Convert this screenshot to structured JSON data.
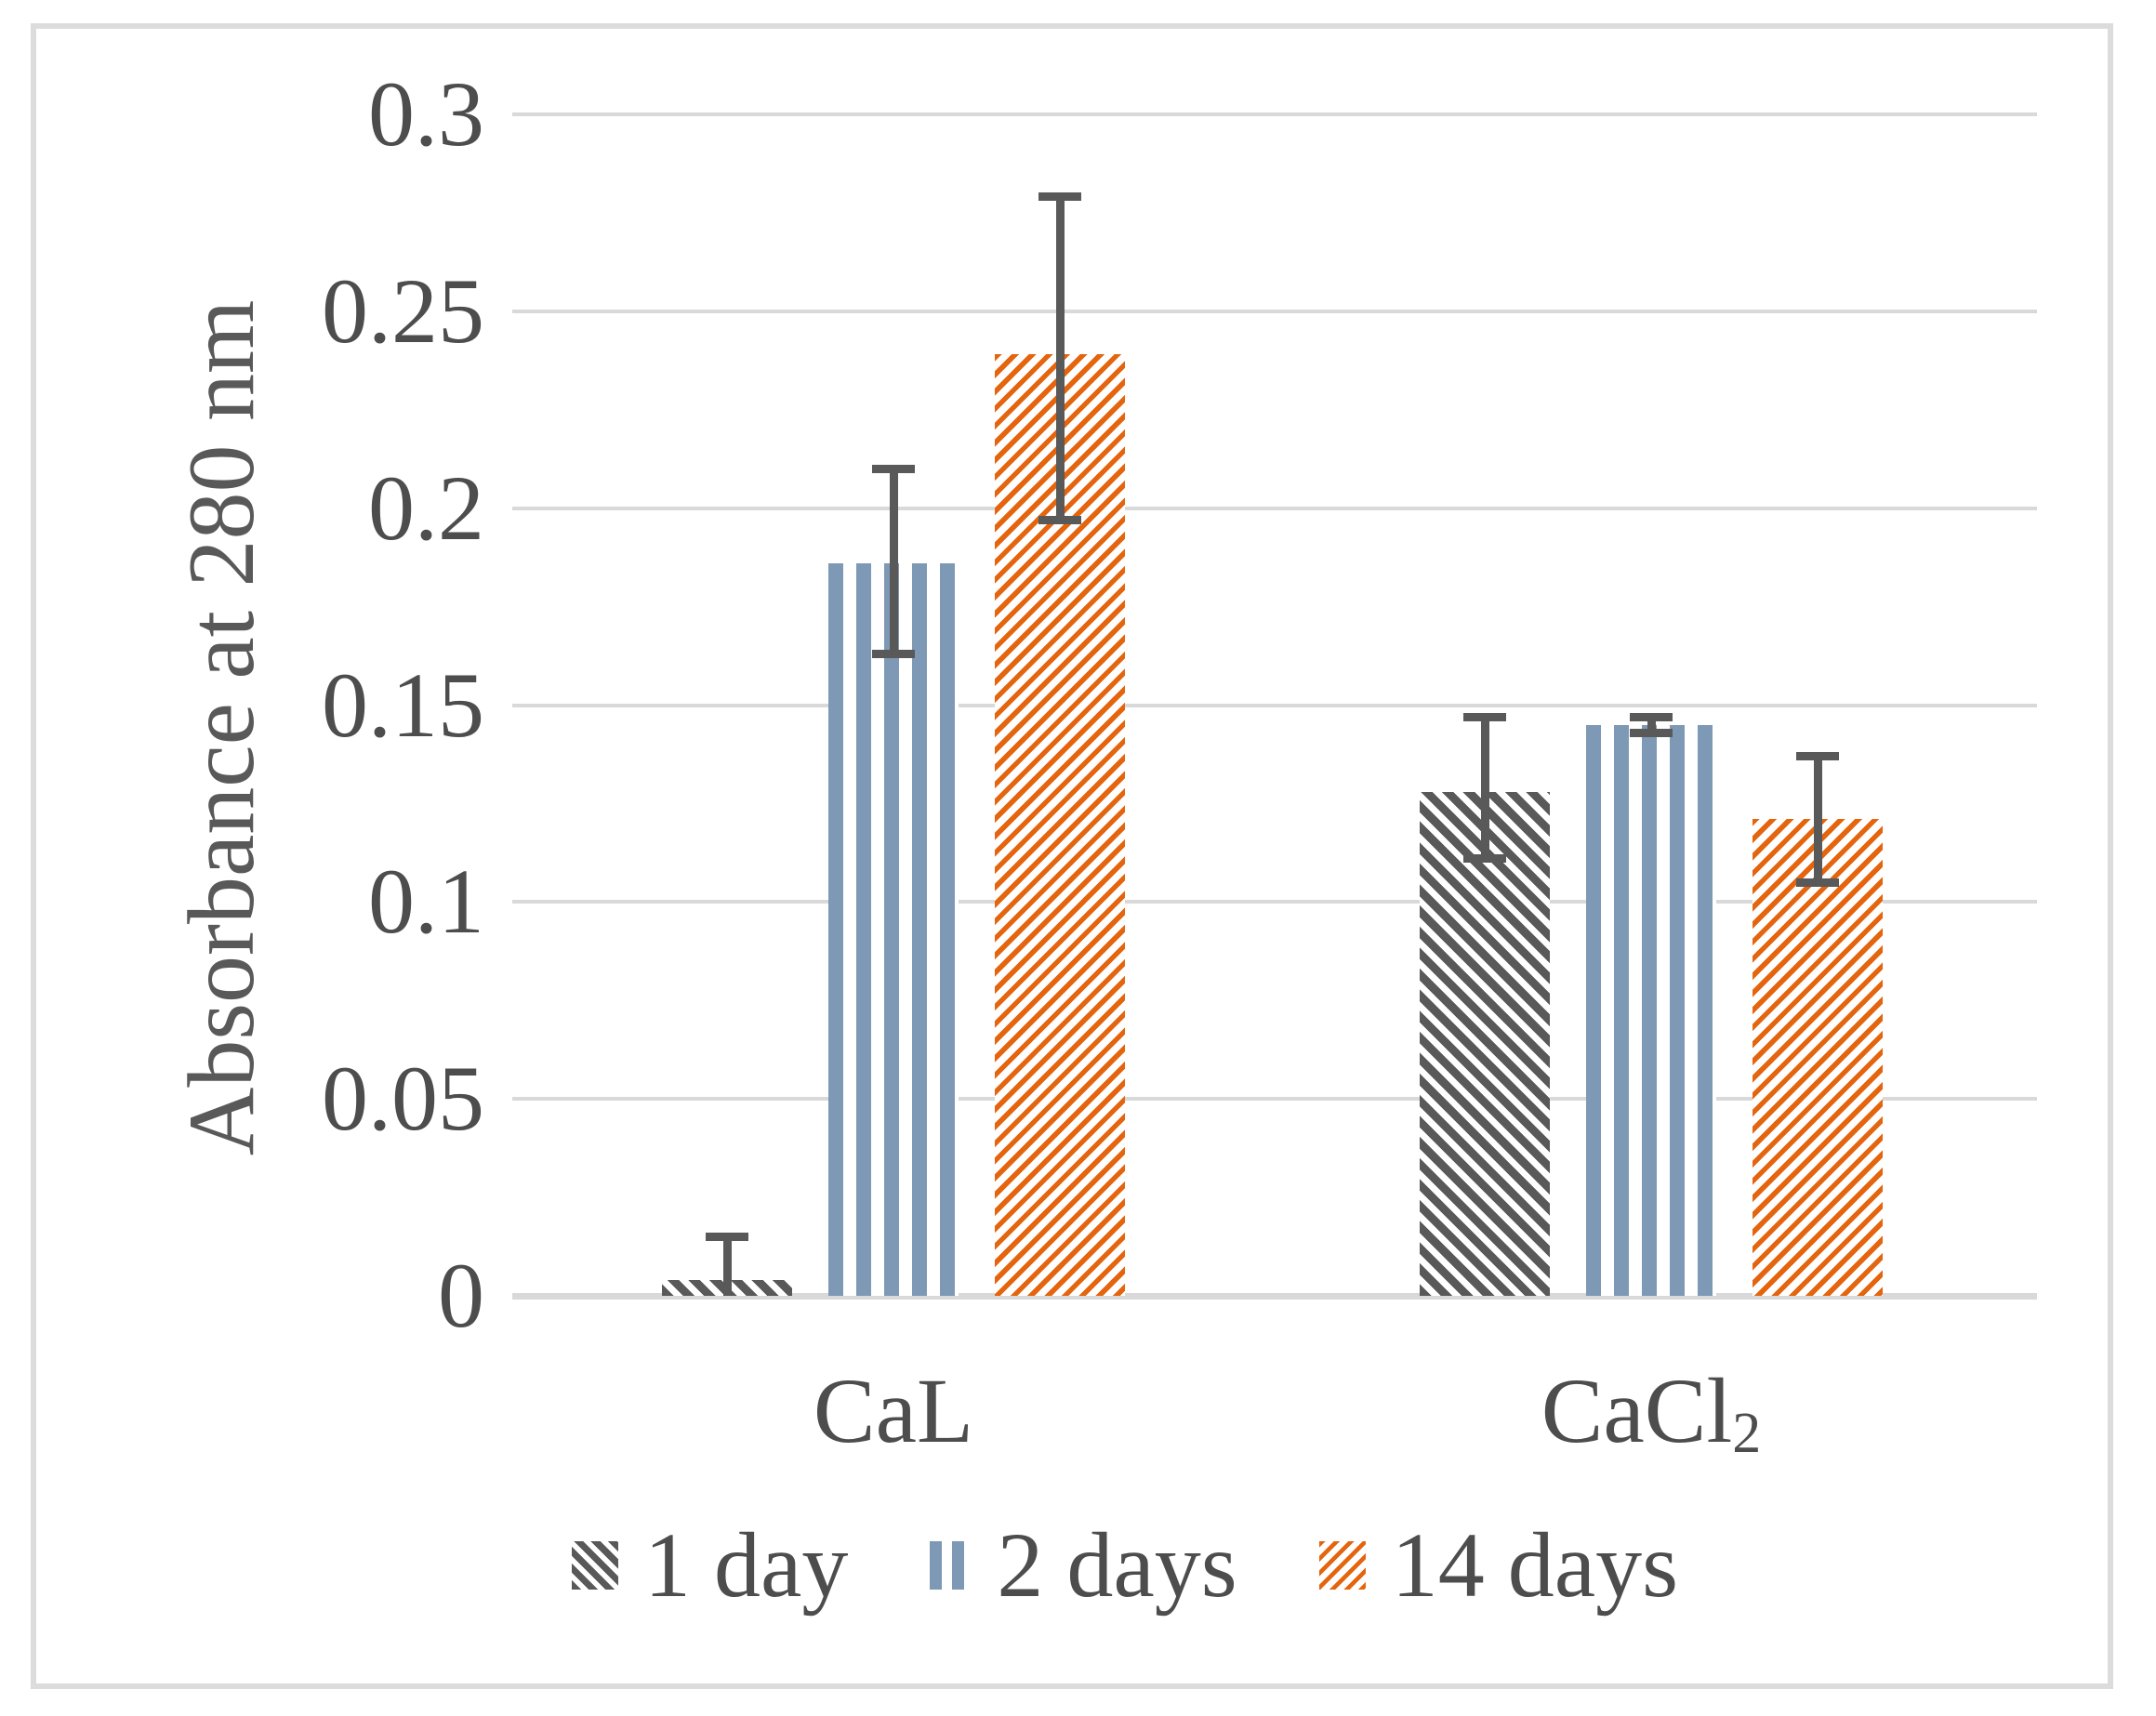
{
  "chart_data": {
    "type": "bar",
    "title": "",
    "ylabel": "Absorbance at 280 nm",
    "xlabel": "",
    "ylim": [
      0,
      0.3
    ],
    "grid": true,
    "legend_position": "bottom",
    "yticks": [
      {
        "label": "0",
        "value": 0
      },
      {
        "label": "0.05",
        "value": 0.05
      },
      {
        "label": "0.1",
        "value": 0.1
      },
      {
        "label": "0.15",
        "value": 0.15
      },
      {
        "label": "0.2",
        "value": 0.2
      },
      {
        "label": "0.25",
        "value": 0.25
      },
      {
        "label": "0.3",
        "value": 0.3
      }
    ],
    "categories": [
      {
        "text": "CaL",
        "subscript": ""
      },
      {
        "text": "CaCl",
        "subscript": "2"
      }
    ],
    "series": [
      {
        "name": "1 day",
        "pattern": "diagonal-down-hatch",
        "color": "#595959",
        "values": [
          0.004,
          0.128
        ],
        "err_lo": [
          null,
          0.111
        ],
        "err_hi": [
          0.015,
          0.147
        ]
      },
      {
        "name": "2 days",
        "pattern": "vertical-stripes",
        "color": "#7E99B5",
        "values": [
          0.186,
          0.145
        ],
        "err_lo": [
          0.163,
          0.143
        ],
        "err_hi": [
          0.21,
          0.147
        ]
      },
      {
        "name": "14 days",
        "pattern": "diagonal-up-hatch",
        "color": "#E4650E",
        "values": [
          0.239,
          0.121
        ],
        "err_lo": [
          0.197,
          0.105
        ],
        "err_hi": [
          0.279,
          0.137
        ]
      }
    ],
    "error_bar_color": "#595959",
    "gridline_color": "#D9D9D9",
    "text_color": "#4D4D4D"
  }
}
